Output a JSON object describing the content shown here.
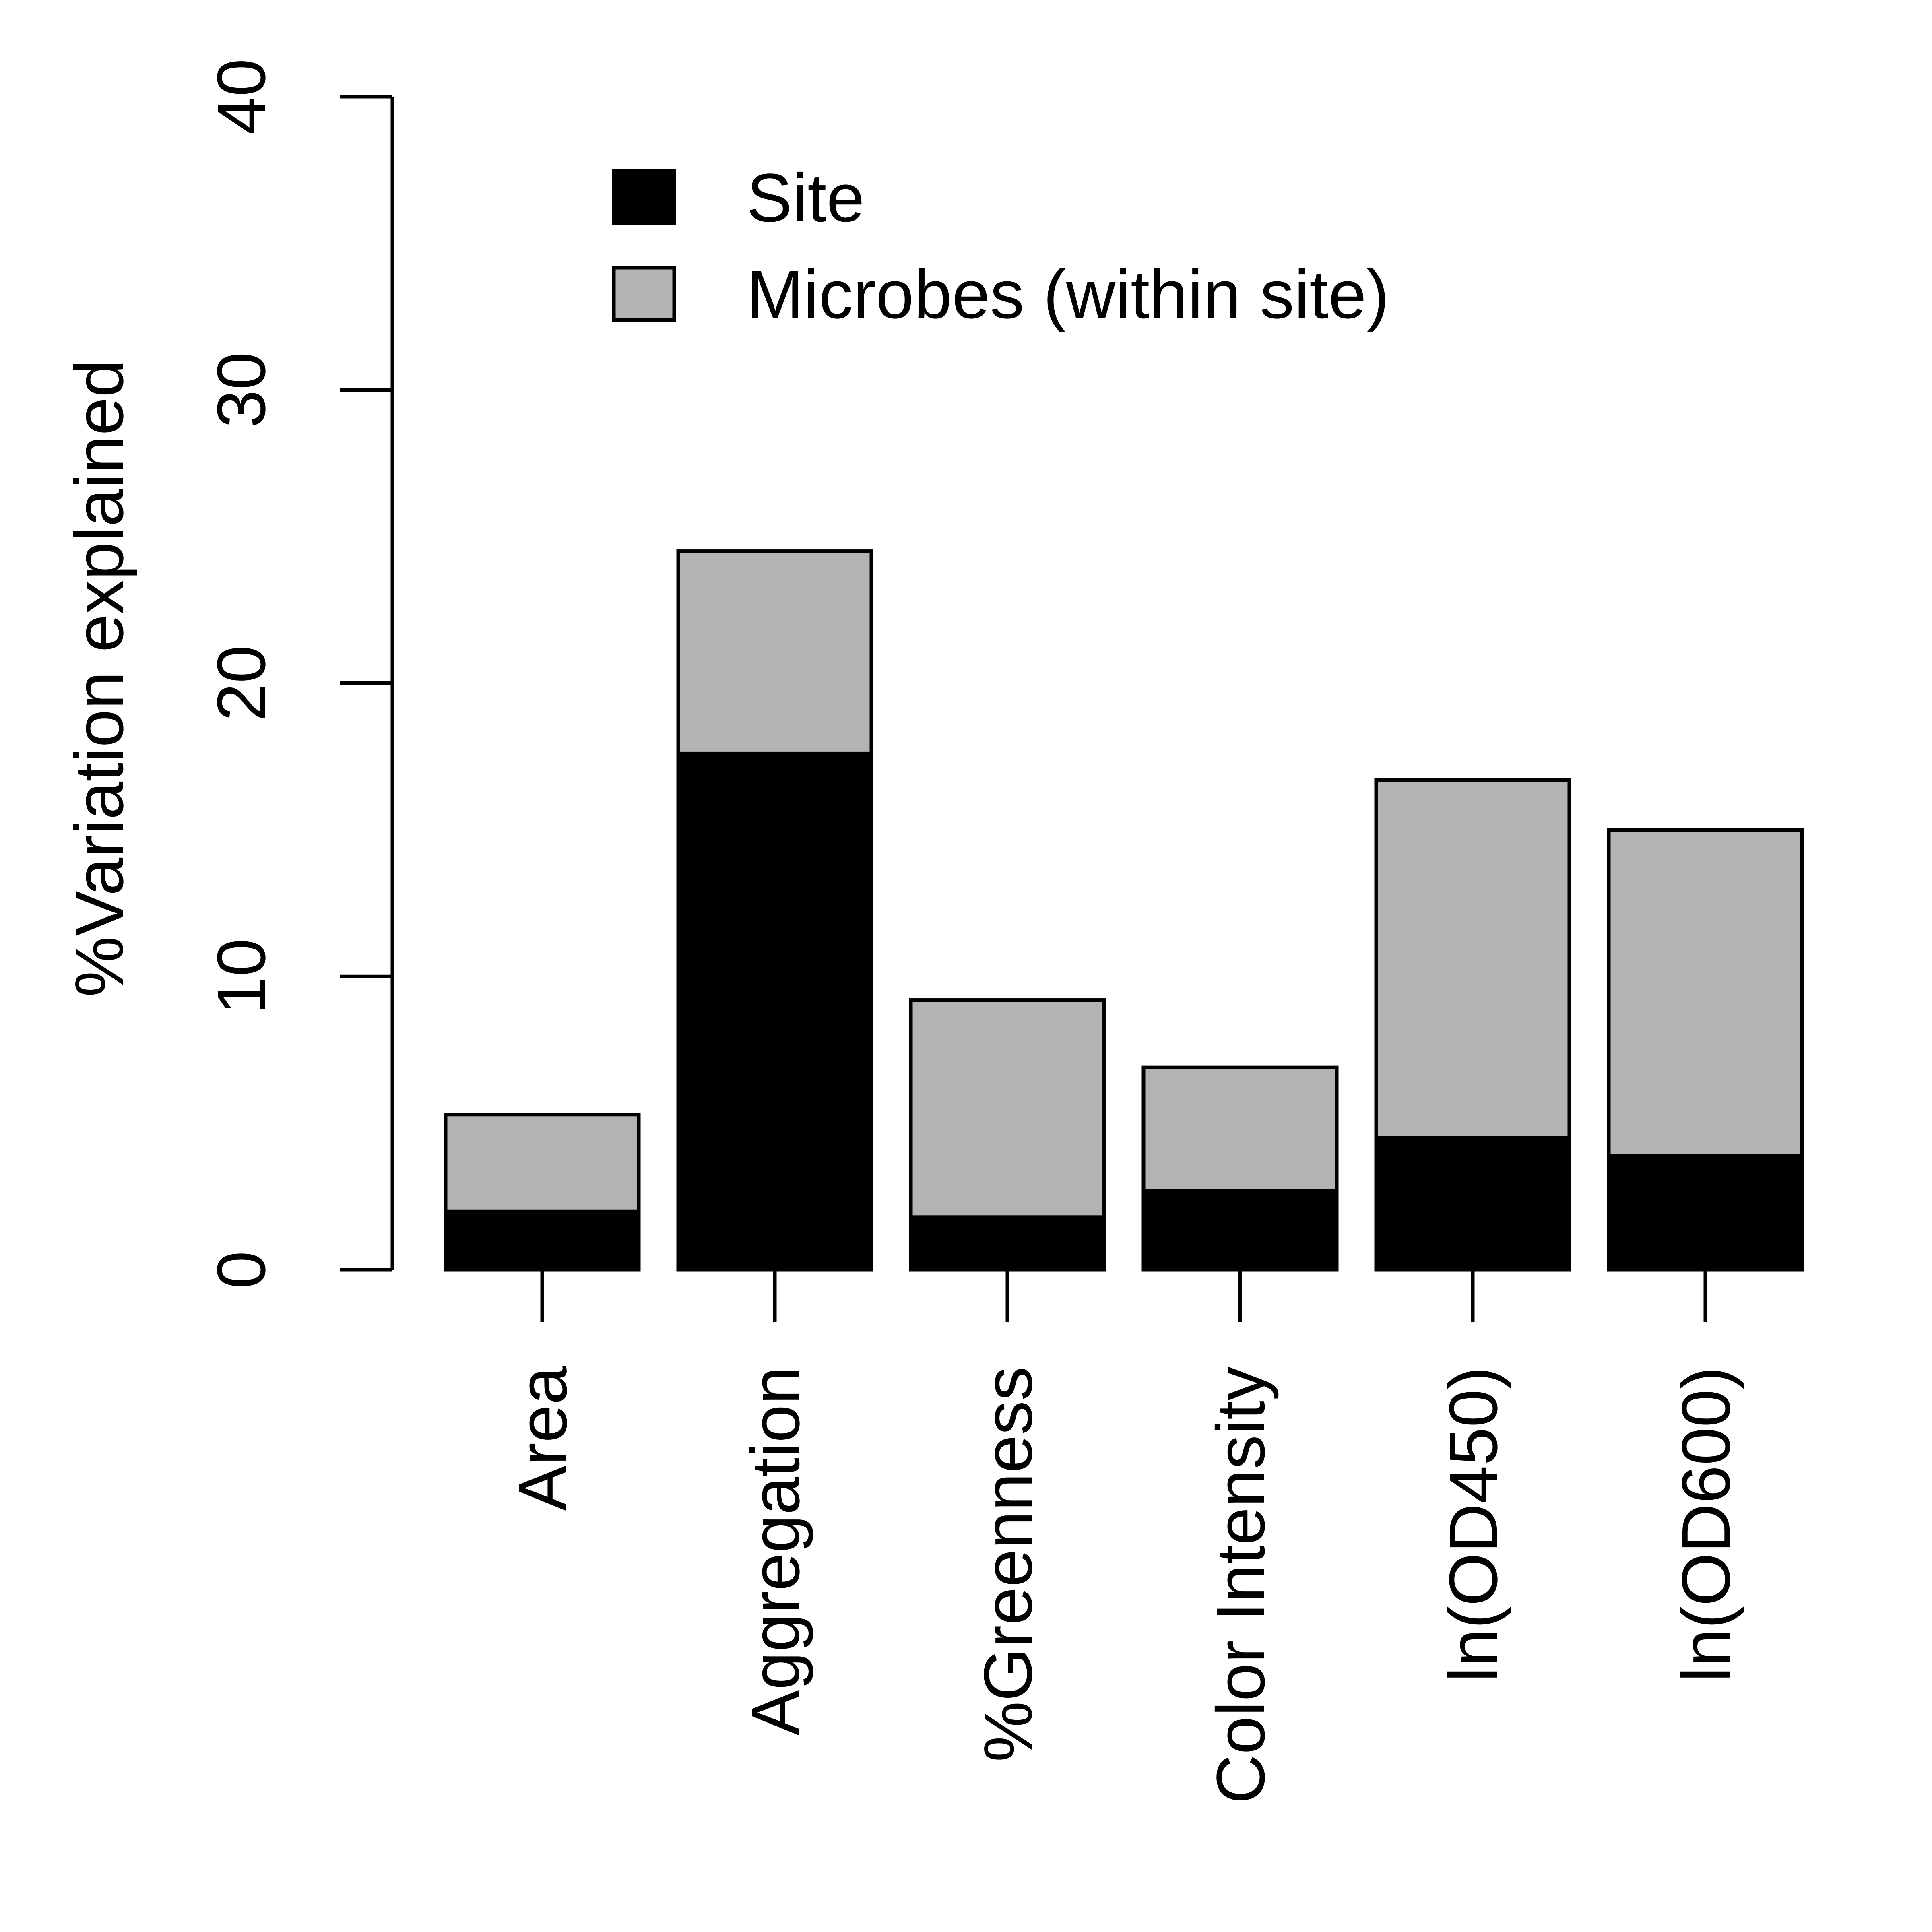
{
  "chart_data": {
    "type": "bar",
    "stacked": true,
    "ylabel": "%Variation explained",
    "ylim": [
      0,
      40
    ],
    "yticks": [
      0,
      10,
      20,
      30,
      40
    ],
    "categories": [
      "Area",
      "Aggregation",
      "%Greenness",
      "Color Intensity",
      "ln(OD450)",
      "ln(OD600)"
    ],
    "series": [
      {
        "name": "Site",
        "color": "#000000",
        "values": [
          2.0,
          17.6,
          1.8,
          2.7,
          4.5,
          3.9
        ]
      },
      {
        "name": "Microbes (within site)",
        "color": "#b3b3b3",
        "values": [
          3.3,
          6.9,
          7.4,
          4.2,
          12.2,
          11.1
        ]
      }
    ],
    "legend_position": "top-center",
    "grid": false
  }
}
